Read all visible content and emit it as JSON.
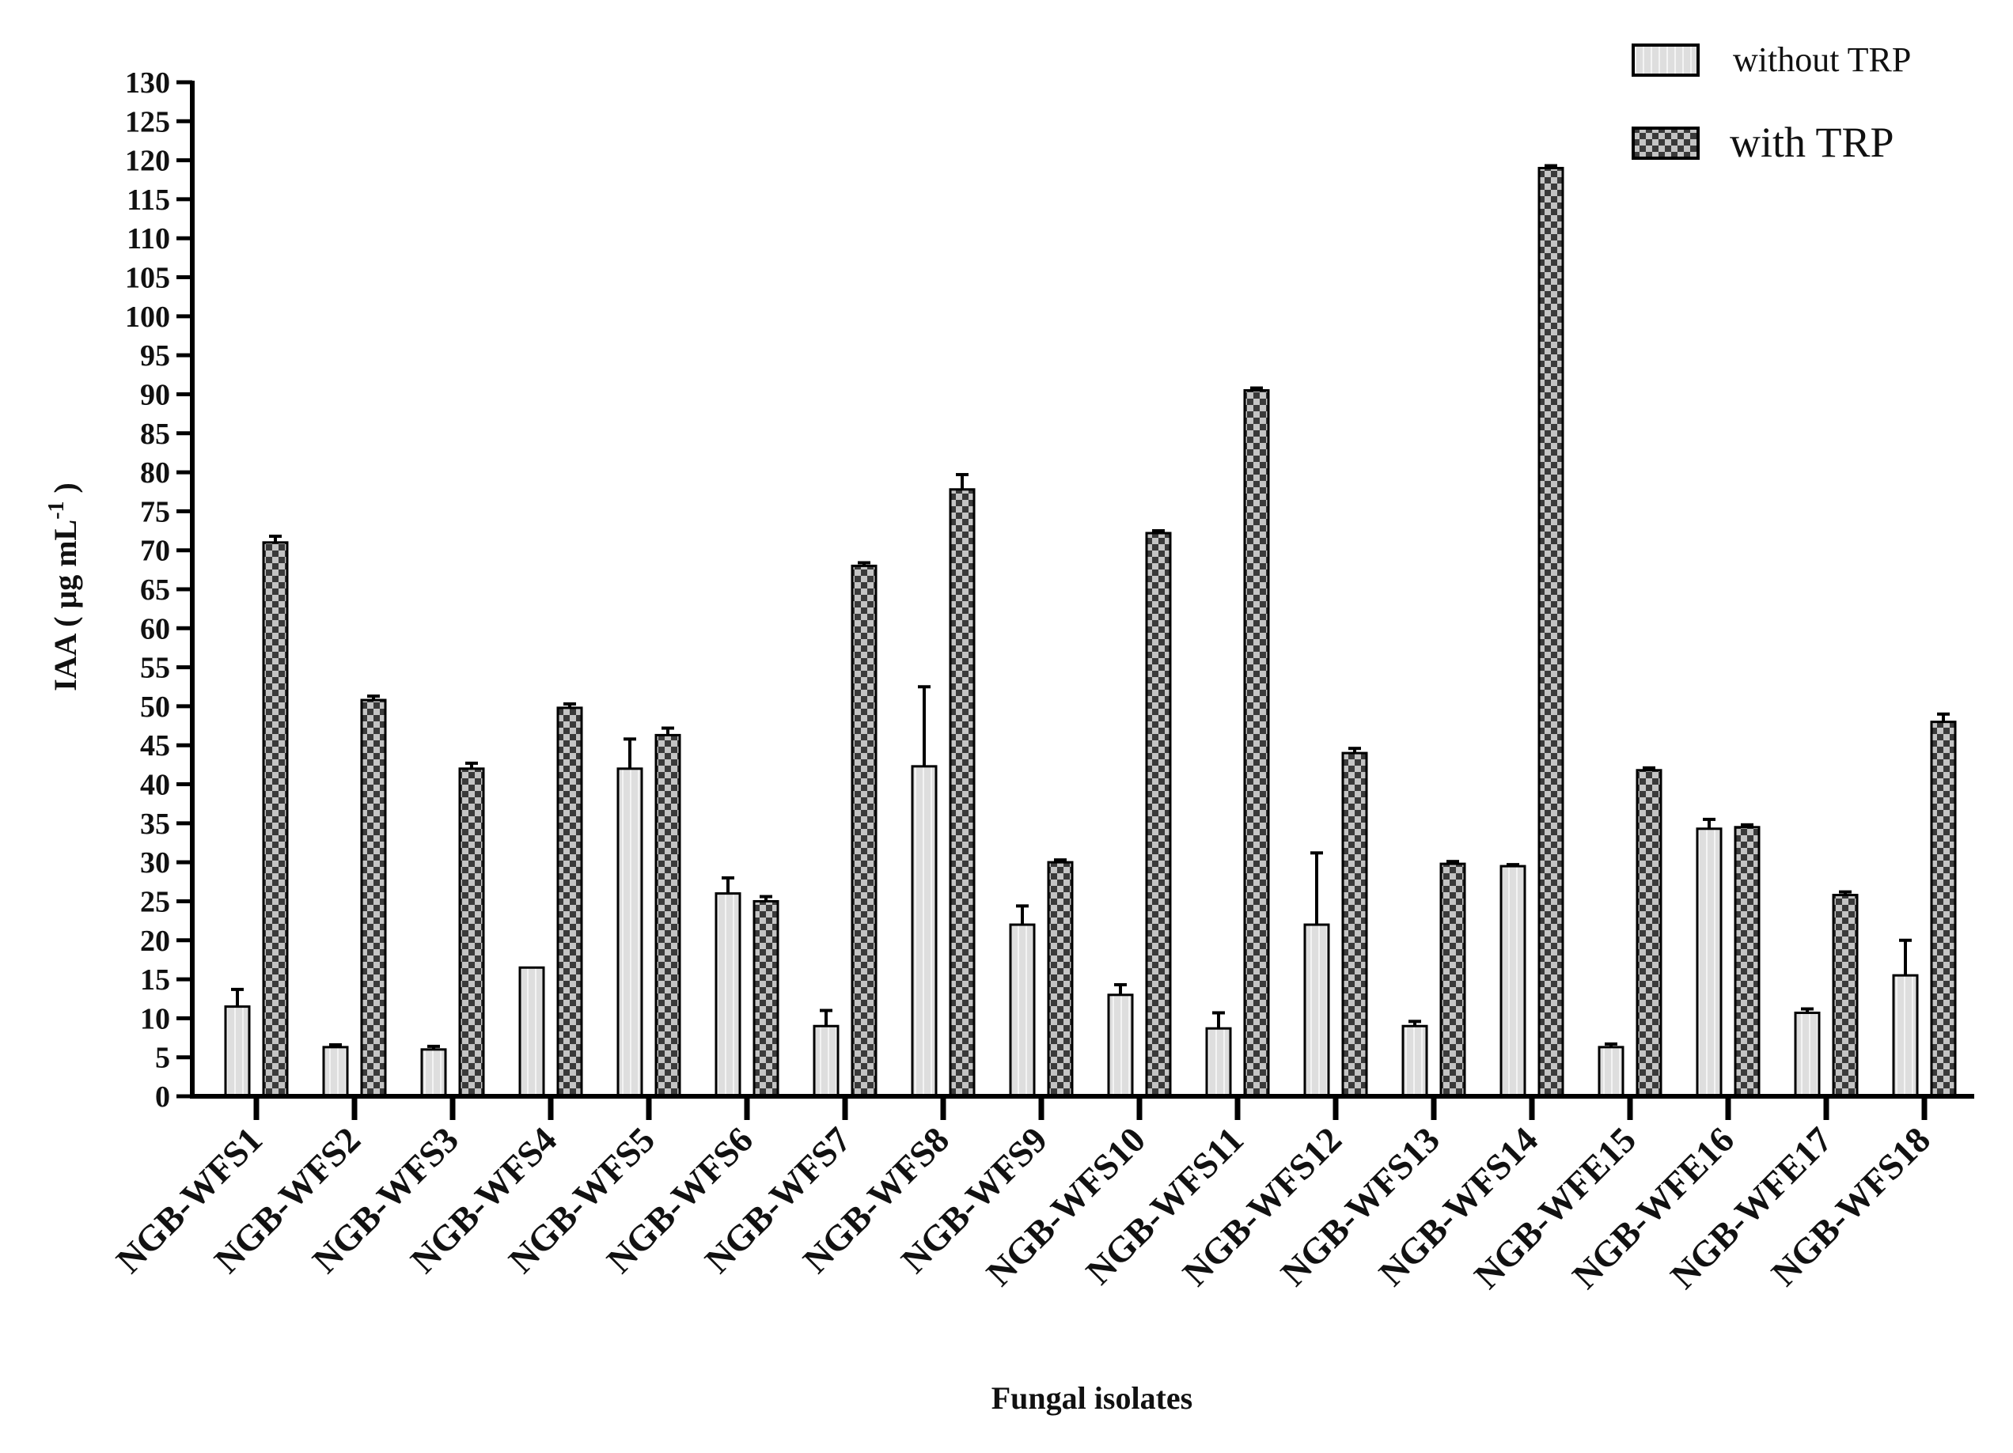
{
  "chart_data": {
    "type": "bar",
    "xlabel": "Fungal isolates",
    "ylabel": "IAA ( μg mL",
    "ylabel_sup": "-1",
    "ylabel_close": ")",
    "ylim": [
      0,
      130
    ],
    "ytick_step": 5,
    "grid": false,
    "legend_position": "top-right",
    "categories": [
      "NGB-WFS1",
      "NGB-WFS2",
      "NGB-WFS3",
      "NGB-WFS4",
      "NGB-WFS5",
      "NGB-WFS6",
      "NGB-WFS7",
      "NGB-WFS8",
      "NGB-WFS9",
      "NGB-WFS10",
      "NGB-WFS11",
      "NGB-WFS12",
      "NGB-WFS13",
      "NGB-WFS14",
      "NGB-WFE15",
      "NGB-WFE16",
      "NGB-WFE17",
      "NGB-WFS18"
    ],
    "series": [
      {
        "name": "without TRP",
        "pattern": "stripes-light",
        "values": [
          11.5,
          6.3,
          6.0,
          16.5,
          42.0,
          26.0,
          9.0,
          42.3,
          22.0,
          13.0,
          8.7,
          22.0,
          9.0,
          29.5,
          6.3,
          34.3,
          10.7,
          15.5
        ],
        "errors": [
          2.2,
          0.3,
          0.4,
          0.0,
          3.8,
          2.0,
          2.0,
          10.2,
          2.4,
          1.3,
          2.0,
          9.2,
          0.6,
          0.2,
          0.4,
          1.2,
          0.5,
          4.5
        ]
      },
      {
        "name": "with TRP",
        "pattern": "checker-dark",
        "values": [
          71.0,
          50.8,
          42.0,
          49.8,
          46.3,
          25.0,
          68.0,
          77.8,
          30.0,
          72.2,
          90.5,
          44.0,
          29.8,
          119.0,
          41.8,
          34.5,
          25.8,
          48.0
        ],
        "errors": [
          0.8,
          0.5,
          0.7,
          0.5,
          0.9,
          0.6,
          0.4,
          1.9,
          0.3,
          0.3,
          0.3,
          0.6,
          0.3,
          0.3,
          0.3,
          0.3,
          0.4,
          1.0
        ]
      }
    ],
    "colors": {
      "axis": "#000000",
      "bar_light": "#dedede",
      "stripe": "#f2f2f2",
      "check_dark": "#3a3a3a",
      "check_light": "#c4c4c4"
    }
  }
}
